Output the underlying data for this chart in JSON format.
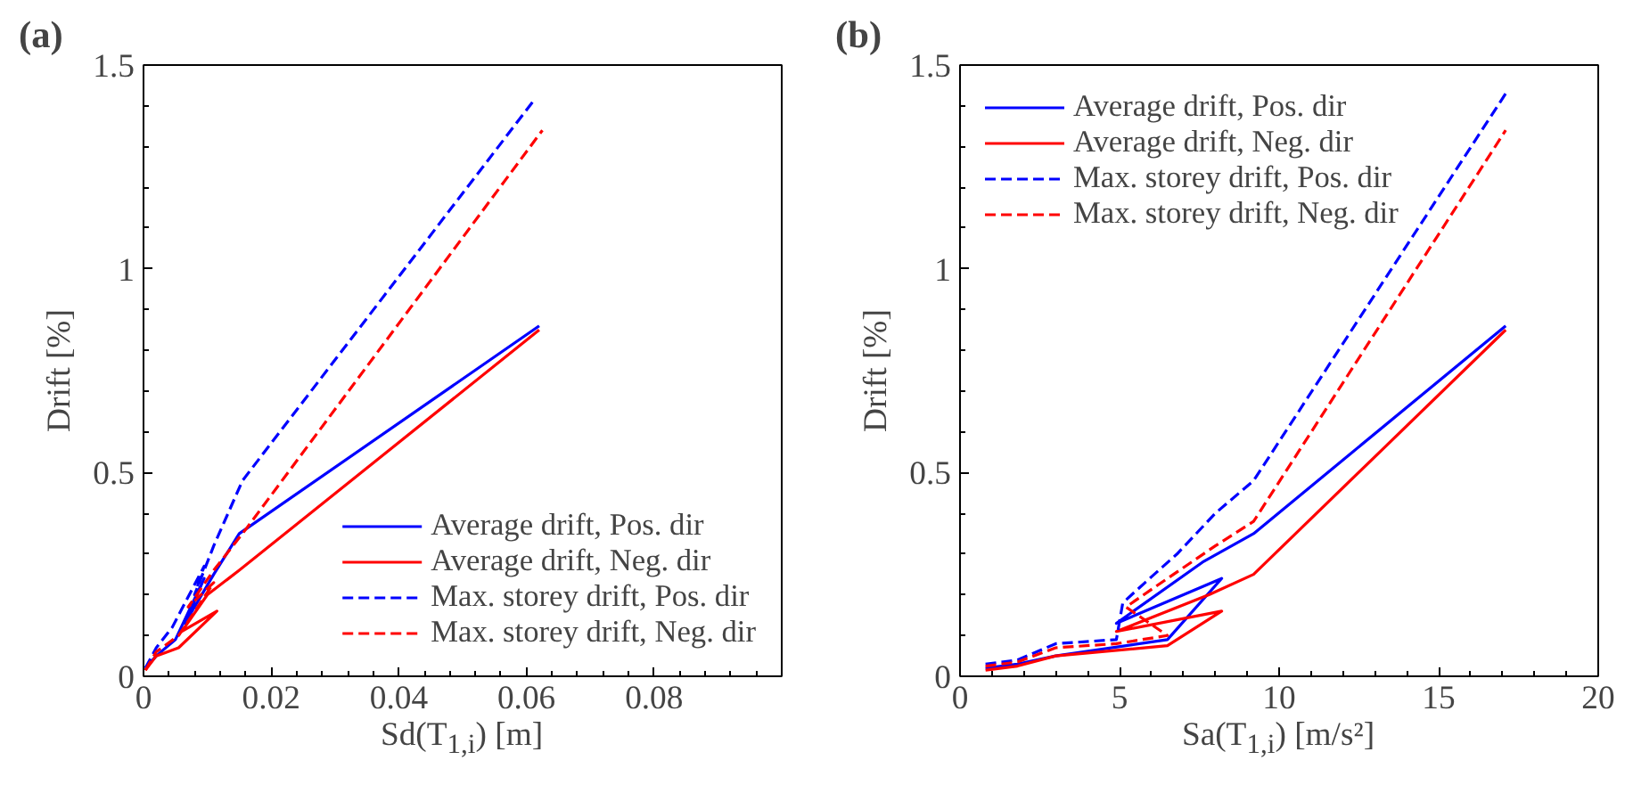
{
  "chart_data": [
    {
      "type": "line",
      "title": "(a)",
      "xlabel": "Sd(T$_{1,i}$) [m]",
      "ylabel": "Drift [%]",
      "xlim": [
        0,
        0.1
      ],
      "ylim": [
        0,
        1.5
      ],
      "xticks": [
        0,
        0.02,
        0.04,
        0.06,
        0.08
      ],
      "yticks": [
        0,
        0.5,
        1,
        1.5
      ],
      "grid": false,
      "legend": "bottom right",
      "series": [
        {
          "name": "Average drift, Pos. dir",
          "color": "#0000ff",
          "line_style": "solid",
          "x": [
            0.0003,
            0.002,
            0.005,
            0.0095,
            0.0065,
            0.011,
            0.015,
            0.062
          ],
          "values": [
            0.02,
            0.05,
            0.09,
            0.24,
            0.13,
            0.25,
            0.35,
            0.86
          ]
        },
        {
          "name": "Average drift, Neg. dir",
          "color": "#ff0000",
          "line_style": "solid",
          "x": [
            0.0003,
            0.002,
            0.0055,
            0.0115,
            0.006,
            0.01,
            0.015,
            0.062
          ],
          "values": [
            0.015,
            0.05,
            0.07,
            0.16,
            0.11,
            0.2,
            0.26,
            0.85
          ]
        },
        {
          "name": "Max. storey drift, Pos. dir",
          "color": "#0000ff",
          "line_style": "dashed",
          "x": [
            0.0003,
            0.002,
            0.0045,
            0.0095,
            0.008,
            0.011,
            0.0155,
            0.061
          ],
          "values": [
            0.02,
            0.07,
            0.12,
            0.27,
            0.2,
            0.32,
            0.48,
            1.41
          ]
        },
        {
          "name": "Max. storey drift, Neg. dir",
          "color": "#ff0000",
          "line_style": "dashed",
          "x": [
            0.0003,
            0.002,
            0.0055,
            0.011,
            0.007,
            0.011,
            0.016,
            0.0625
          ],
          "values": [
            0.015,
            0.06,
            0.1,
            0.23,
            0.17,
            0.26,
            0.36,
            1.34
          ]
        }
      ]
    },
    {
      "type": "line",
      "title": "(b)",
      "xlabel": "Sa(T$_{1,i}$) [m/s²]",
      "ylabel": "Drift [%]",
      "xlim": [
        0,
        20
      ],
      "ylim": [
        0,
        1.5
      ],
      "xticks": [
        0,
        5,
        10,
        15,
        20
      ],
      "yticks": [
        0,
        0.5,
        1,
        1.5
      ],
      "grid": false,
      "legend": "top left",
      "series": [
        {
          "name": "Average drift, Pos. dir",
          "color": "#0000ff",
          "line_style": "solid",
          "x": [
            0.8,
            1.8,
            3,
            6.5,
            8.2,
            4.9,
            7.6,
            9.2,
            17.1
          ],
          "values": [
            0.02,
            0.03,
            0.05,
            0.09,
            0.24,
            0.13,
            0.28,
            0.35,
            0.86
          ]
        },
        {
          "name": "Average drift, Neg. dir",
          "color": "#ff0000",
          "line_style": "solid",
          "x": [
            0.8,
            1.8,
            3,
            6.5,
            8.2,
            4.9,
            7.8,
            9.2,
            17.1
          ],
          "values": [
            0.015,
            0.025,
            0.05,
            0.075,
            0.16,
            0.11,
            0.2,
            0.25,
            0.85
          ]
        },
        {
          "name": "Max. storey drift, Pos. dir",
          "color": "#0000ff",
          "line_style": "dashed",
          "x": [
            0.8,
            1.8,
            3,
            4.9,
            5.1,
            5.8,
            6.8,
            8,
            9.2,
            17.1
          ],
          "values": [
            0.03,
            0.04,
            0.08,
            0.09,
            0.18,
            0.23,
            0.3,
            0.4,
            0.48,
            1.43
          ]
        },
        {
          "name": "Max. storey drift, Neg. dir",
          "color": "#ff0000",
          "line_style": "dashed",
          "x": [
            0.8,
            1.8,
            3,
            4.9,
            6.5,
            5.2,
            6.5,
            8,
            9.2,
            17.1
          ],
          "values": [
            0.025,
            0.035,
            0.07,
            0.08,
            0.1,
            0.17,
            0.24,
            0.32,
            0.38,
            1.34
          ]
        }
      ]
    }
  ]
}
